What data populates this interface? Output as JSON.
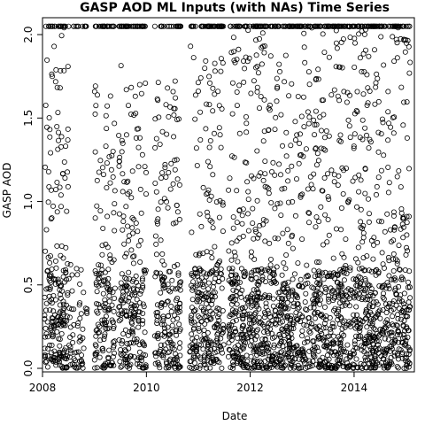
{
  "chart_data": {
    "type": "scatter",
    "title": "GASP AOD ML Inputs (with NAs) Time Series",
    "xlabel": "Date",
    "ylabel": "GASP AOD",
    "xlim": [
      "2008-01-01",
      "2015-03-01"
    ],
    "ylim": [
      0.0,
      2.08
    ],
    "x_ticks": [
      {
        "value": "2008-01-01",
        "label": "2008"
      },
      {
        "value": "2010-01-01",
        "label": "2010"
      },
      {
        "value": "2012-01-01",
        "label": "2012"
      },
      {
        "value": "2014-01-01",
        "label": "2014"
      }
    ],
    "y_ticks": [
      {
        "value": 0.0,
        "label": "0.0"
      },
      {
        "value": 0.5,
        "label": "0.5"
      },
      {
        "value": 1.0,
        "label": "1.0"
      },
      {
        "value": 1.5,
        "label": "1.5"
      },
      {
        "value": 2.0,
        "label": "2.0"
      }
    ],
    "marker": "open-circle",
    "marker_color": "#000000",
    "grid": false,
    "legend": "none",
    "y_max_value": 2.05,
    "active_periods": [
      {
        "start": "2008-01-15",
        "end": "2008-06-30"
      },
      {
        "start": "2008-07-01",
        "end": "2008-11-15"
      },
      {
        "start": "2009-01-01",
        "end": "2009-05-25"
      },
      {
        "start": "2009-06-20",
        "end": "2009-12-31"
      },
      {
        "start": "2010-03-01",
        "end": "2010-08-31"
      },
      {
        "start": "2010-11-01",
        "end": "2011-06-30"
      },
      {
        "start": "2011-08-01",
        "end": "2013-10-31"
      },
      {
        "start": "2013-11-01",
        "end": "2015-01-31"
      }
    ],
    "data_segments": [
      {
        "start": "2008-01-15",
        "end": "2008-06-30",
        "density": 1.0
      },
      {
        "start": "2008-07-01",
        "end": "2008-11-15",
        "density": 0.35
      },
      {
        "start": "2009-01-01",
        "end": "2009-05-25",
        "density": 0.85
      },
      {
        "start": "2009-06-20",
        "end": "2009-12-31",
        "density": 0.9
      },
      {
        "start": "2010-03-01",
        "end": "2010-08-31",
        "density": 0.85
      },
      {
        "start": "2010-11-01",
        "end": "2011-06-30",
        "density": 0.95
      },
      {
        "start": "2011-08-01",
        "end": "2013-10-31",
        "density": 1.0
      },
      {
        "start": "2013-11-01",
        "end": "2015-01-31",
        "density": 1.0
      }
    ]
  }
}
